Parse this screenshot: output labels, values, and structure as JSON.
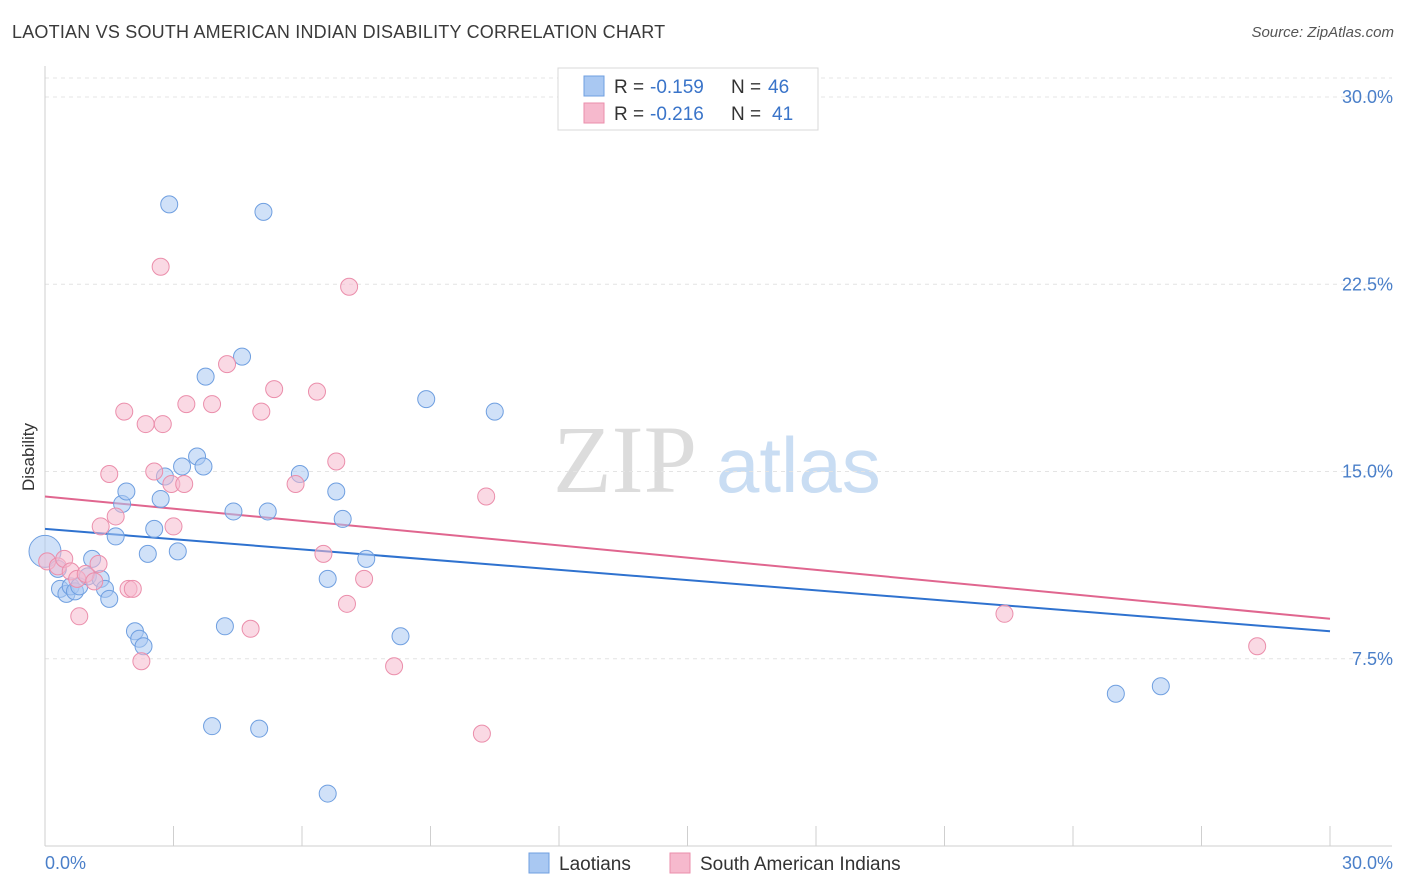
{
  "header": {
    "title": "LAOTIAN VS SOUTH AMERICAN INDIAN DISABILITY CORRELATION CHART",
    "source": "Source: ZipAtlas.com"
  },
  "watermark": {
    "zip": "ZIP",
    "atlas": "atlas"
  },
  "colors": {
    "laotian_fill": "#a9c8f2",
    "laotian_stroke": "#6f9fe0",
    "laotian_line": "#2f72cf",
    "sai_fill": "#f6b9cd",
    "sai_stroke": "#eb8eab",
    "sai_line": "#e0668f"
  },
  "legend": {
    "laotian": {
      "r_label": "R =",
      "r_value": "-0.159",
      "n_label": "N =",
      "n_value": "46"
    },
    "sai": {
      "r_label": "R =",
      "r_value": "-0.216",
      "n_label": "N =",
      "n_value": "41"
    }
  },
  "chart_data": {
    "type": "scatter",
    "title": "LAOTIAN VS SOUTH AMERICAN INDIAN DISABILITY CORRELATION CHART",
    "xlabel": "",
    "ylabel": "Disability",
    "xlim": [
      0,
      30
    ],
    "ylim": [
      0,
      30
    ],
    "x_tick_labels": [
      "0.0%",
      "30.0%"
    ],
    "y_ticks": [
      7.5,
      15.0,
      22.5,
      30.0
    ],
    "y_tick_labels": [
      "7.5%",
      "15.0%",
      "22.5%",
      "30.0%"
    ],
    "grid": true,
    "legend_position": "top-center",
    "series": [
      {
        "name": "Laotians",
        "r": -0.159,
        "n": 46,
        "trend": {
          "y_at_x0": 12.7,
          "y_at_x30": 8.6
        },
        "points": [
          [
            0.0,
            11.8
          ],
          [
            0.3,
            11.1
          ],
          [
            0.35,
            10.3
          ],
          [
            0.5,
            10.1
          ],
          [
            0.6,
            10.4
          ],
          [
            0.7,
            10.2
          ],
          [
            0.8,
            10.4
          ],
          [
            1.0,
            10.8
          ],
          [
            1.1,
            11.5
          ],
          [
            1.3,
            10.7
          ],
          [
            1.4,
            10.3
          ],
          [
            1.5,
            9.9
          ],
          [
            1.65,
            12.4
          ],
          [
            1.8,
            13.7
          ],
          [
            1.9,
            14.2
          ],
          [
            2.1,
            8.6
          ],
          [
            2.2,
            8.3
          ],
          [
            2.3,
            8.0
          ],
          [
            2.4,
            11.7
          ],
          [
            2.55,
            12.7
          ],
          [
            2.7,
            13.9
          ],
          [
            2.8,
            14.8
          ],
          [
            2.9,
            25.7
          ],
          [
            3.1,
            11.8
          ],
          [
            3.2,
            15.2
          ],
          [
            3.55,
            15.6
          ],
          [
            3.7,
            15.2
          ],
          [
            3.75,
            18.8
          ],
          [
            3.9,
            4.8
          ],
          [
            4.2,
            8.8
          ],
          [
            4.4,
            13.4
          ],
          [
            4.6,
            19.6
          ],
          [
            5.0,
            4.7
          ],
          [
            5.1,
            25.4
          ],
          [
            5.2,
            13.4
          ],
          [
            5.95,
            14.9
          ],
          [
            6.6,
            10.7
          ],
          [
            6.6,
            2.1
          ],
          [
            6.8,
            14.2
          ],
          [
            6.95,
            13.1
          ],
          [
            7.5,
            11.5
          ],
          [
            8.3,
            8.4
          ],
          [
            8.9,
            17.9
          ],
          [
            10.5,
            17.4
          ],
          [
            25.0,
            6.1
          ],
          [
            26.05,
            6.4
          ]
        ]
      },
      {
        "name": "South American Indians",
        "r": -0.216,
        "n": 41,
        "trend": {
          "y_at_x0": 14.0,
          "y_at_x30": 9.1
        },
        "points": [
          [
            0.05,
            11.4
          ],
          [
            0.3,
            11.2
          ],
          [
            0.45,
            11.5
          ],
          [
            0.6,
            11.0
          ],
          [
            0.75,
            10.7
          ],
          [
            0.8,
            9.2
          ],
          [
            0.95,
            10.9
          ],
          [
            1.15,
            10.6
          ],
          [
            1.25,
            11.3
          ],
          [
            1.3,
            12.8
          ],
          [
            1.5,
            14.9
          ],
          [
            1.65,
            13.2
          ],
          [
            1.85,
            17.4
          ],
          [
            1.95,
            10.3
          ],
          [
            2.05,
            10.3
          ],
          [
            2.25,
            7.4
          ],
          [
            2.35,
            16.9
          ],
          [
            2.55,
            15.0
          ],
          [
            2.7,
            23.2
          ],
          [
            2.75,
            16.9
          ],
          [
            2.95,
            14.5
          ],
          [
            3.0,
            12.8
          ],
          [
            3.25,
            14.5
          ],
          [
            3.3,
            17.7
          ],
          [
            3.9,
            17.7
          ],
          [
            4.25,
            19.3
          ],
          [
            4.8,
            8.7
          ],
          [
            5.05,
            17.4
          ],
          [
            5.35,
            18.3
          ],
          [
            5.85,
            14.5
          ],
          [
            6.35,
            18.2
          ],
          [
            6.5,
            11.7
          ],
          [
            6.8,
            15.4
          ],
          [
            7.05,
            9.7
          ],
          [
            7.1,
            22.4
          ],
          [
            7.45,
            10.7
          ],
          [
            8.15,
            7.2
          ],
          [
            10.2,
            4.5
          ],
          [
            10.3,
            14.0
          ],
          [
            22.4,
            9.3
          ],
          [
            28.3,
            8.0
          ]
        ]
      }
    ]
  },
  "bottom_legend": {
    "laotian": "Laotians",
    "sai": "South American Indians"
  }
}
